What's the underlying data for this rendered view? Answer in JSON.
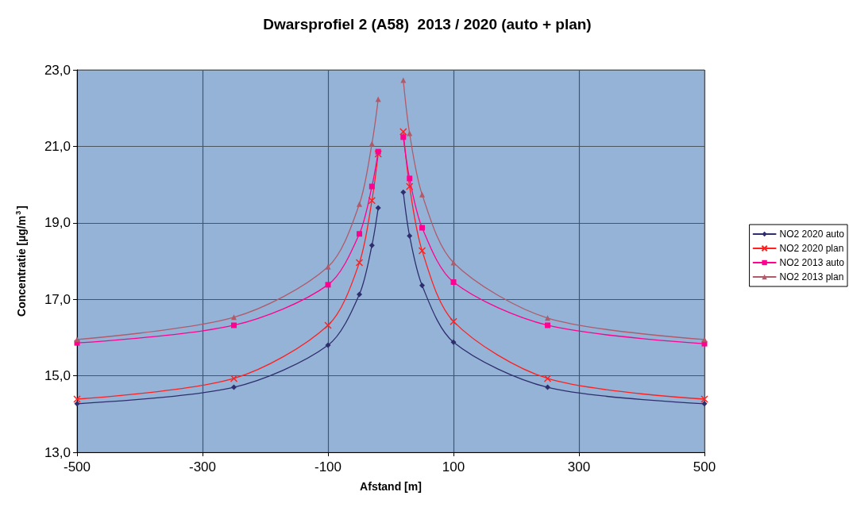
{
  "chart_data": {
    "type": "line",
    "title": "Dwarsprofiel 2 (A58)  2013 / 2020 (auto + plan)",
    "xlabel": "Afstand [m]",
    "ylabel": "Concentratie [µg/m$^{3}$]",
    "x": [
      -500,
      -250,
      -100,
      -50,
      -30,
      -20,
      0,
      20,
      30,
      50,
      100,
      250,
      500
    ],
    "series": [
      {
        "name": "NO2 2020 auto",
        "color": "#2e2e6e",
        "marker": "diamond",
        "values": [
          14.27,
          14.7,
          15.8,
          17.13,
          18.41,
          19.39,
          null,
          19.8,
          18.66,
          17.36,
          15.88,
          14.7,
          14.27
        ]
      },
      {
        "name": "NO2 2020 plan",
        "color": "#ff2020",
        "marker": "cross",
        "values": [
          14.39,
          14.93,
          16.32,
          17.96,
          19.58,
          20.8,
          null,
          21.38,
          19.95,
          18.27,
          16.42,
          14.93,
          14.39
        ]
      },
      {
        "name": "NO2 2013 auto",
        "color": "#ff0090",
        "marker": "square",
        "values": [
          15.86,
          16.32,
          17.38,
          18.71,
          19.95,
          20.86,
          null,
          21.24,
          20.16,
          18.87,
          17.45,
          16.32,
          15.84
        ]
      },
      {
        "name": "NO2 2013 plan",
        "color": "#b05a6a",
        "marker": "triangle",
        "values": [
          15.95,
          16.53,
          17.85,
          19.49,
          21.07,
          22.23,
          null,
          22.73,
          21.34,
          19.74,
          17.96,
          16.51,
          15.95
        ]
      }
    ],
    "xlim": [
      -500,
      500
    ],
    "xticks": [
      -500,
      -300,
      -100,
      100,
      300,
      500
    ],
    "ylim": [
      13,
      23
    ],
    "yticks": [
      {
        "value": 13,
        "label": "13,0"
      },
      {
        "value": 15,
        "label": "15,0"
      },
      {
        "value": 17,
        "label": "17,0"
      },
      {
        "value": 19,
        "label": "19,0"
      },
      {
        "value": 21,
        "label": "21,0"
      },
      {
        "value": 23,
        "label": "23,0"
      }
    ],
    "grid": true,
    "legend": "right",
    "line_style": "solid"
  }
}
